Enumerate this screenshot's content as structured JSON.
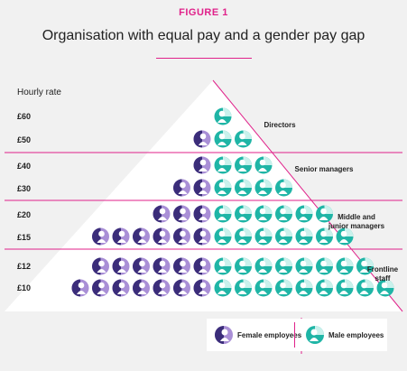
{
  "figure": {
    "label": "FIGURE 1",
    "title": "Organisation with equal pay and a gender pay gap"
  },
  "axis": {
    "label": "Hourly rate",
    "rates": [
      "£60",
      "£50",
      "£40",
      "£30",
      "£20",
      "£15",
      "£12",
      "£10"
    ]
  },
  "bands": [
    {
      "label_line1": "Directors",
      "label_line2": ""
    },
    {
      "label_line1": "Senior managers",
      "label_line2": ""
    },
    {
      "label_line1": "Middle and",
      "label_line2": "junior managers"
    },
    {
      "label_line1": "Frontline",
      "label_line2": "staff"
    }
  ],
  "rows": [
    {
      "rate": "£60",
      "female": 0,
      "male": 1
    },
    {
      "rate": "£50",
      "female": 1,
      "male": 2
    },
    {
      "rate": "£40",
      "female": 1,
      "male": 3
    },
    {
      "rate": "£30",
      "female": 2,
      "male": 4
    },
    {
      "rate": "£20",
      "female": 3,
      "male": 6
    },
    {
      "rate": "£15",
      "female": 6,
      "male": 7
    },
    {
      "rate": "£12",
      "female": 6,
      "male": 8
    },
    {
      "rate": "£10",
      "female": 7,
      "male": 9
    }
  ],
  "legend": {
    "female": "Female employees",
    "male": "Male employees"
  },
  "colors": {
    "accent": "#e0218a",
    "female_dark": "#3b2d7a",
    "female_light": "#a98fd6",
    "male": "#1fb5a6",
    "male_light": "#c9f1ec",
    "pyramid_fill": "#ffffff",
    "background": "#f1f1f1"
  }
}
